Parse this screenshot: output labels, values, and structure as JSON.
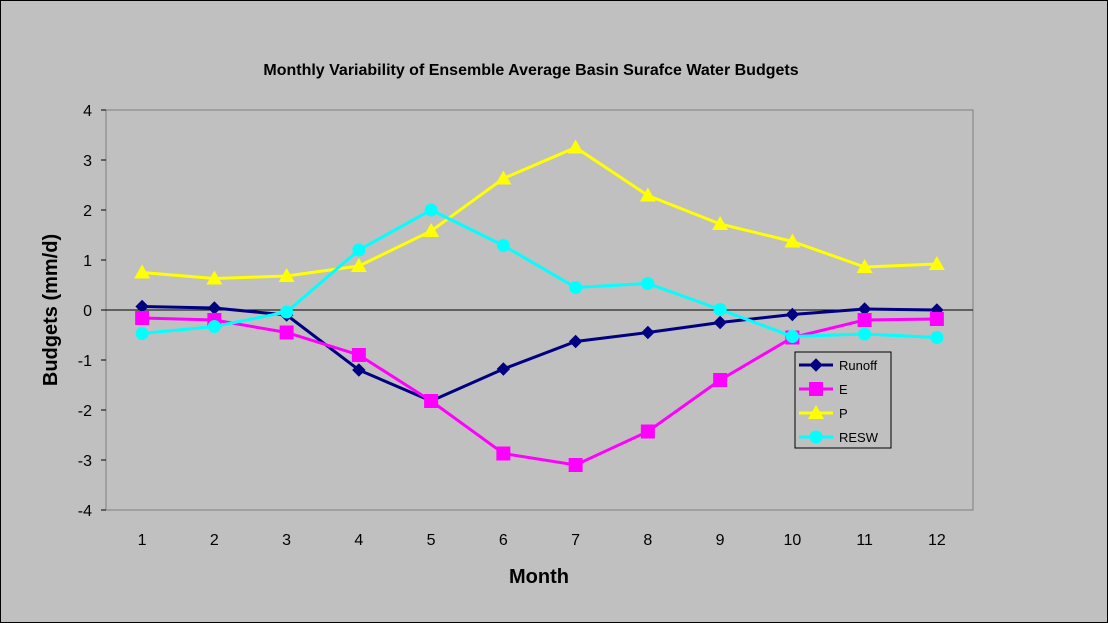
{
  "chart_data": {
    "type": "line",
    "title": "Monthly Variability of Ensemble Average Basin Surafce Water Budgets",
    "xlabel": "Month",
    "ylabel": "Budgets (mm/d)",
    "categories": [
      "1",
      "2",
      "3",
      "4",
      "5",
      "6",
      "7",
      "8",
      "9",
      "10",
      "11",
      "12"
    ],
    "ylim": [
      -4,
      4
    ],
    "yticks": [
      -4,
      -3,
      -2,
      -1,
      0,
      1,
      2,
      3,
      4
    ],
    "ytick_labels": [
      "-4",
      "-3",
      "-2",
      "-1",
      "0",
      "1",
      "2",
      "3",
      "4"
    ],
    "grid": false,
    "legend_position": "right",
    "series": [
      {
        "name": "Runoff",
        "color": "#000080",
        "marker": "diamond",
        "values": [
          0.07,
          0.04,
          -0.1,
          -1.2,
          -1.82,
          -1.18,
          -0.63,
          -0.45,
          -0.25,
          -0.09,
          0.02,
          0.0
        ]
      },
      {
        "name": "E",
        "color": "#ff00ff",
        "marker": "square",
        "values": [
          -0.16,
          -0.2,
          -0.45,
          -0.9,
          -1.82,
          -2.87,
          -3.1,
          -2.43,
          -1.4,
          -0.55,
          -0.2,
          -0.18
        ]
      },
      {
        "name": "P",
        "color": "#ffff00",
        "marker": "triangle",
        "values": [
          0.75,
          0.63,
          0.68,
          0.88,
          1.58,
          2.63,
          3.25,
          2.29,
          1.72,
          1.37,
          0.86,
          0.92
        ]
      },
      {
        "name": "RESW",
        "color": "#00ffff",
        "marker": "circle",
        "values": [
          -0.47,
          -0.33,
          -0.04,
          1.2,
          2.0,
          1.29,
          0.45,
          0.53,
          0.01,
          -0.53,
          -0.48,
          -0.55
        ]
      }
    ]
  }
}
